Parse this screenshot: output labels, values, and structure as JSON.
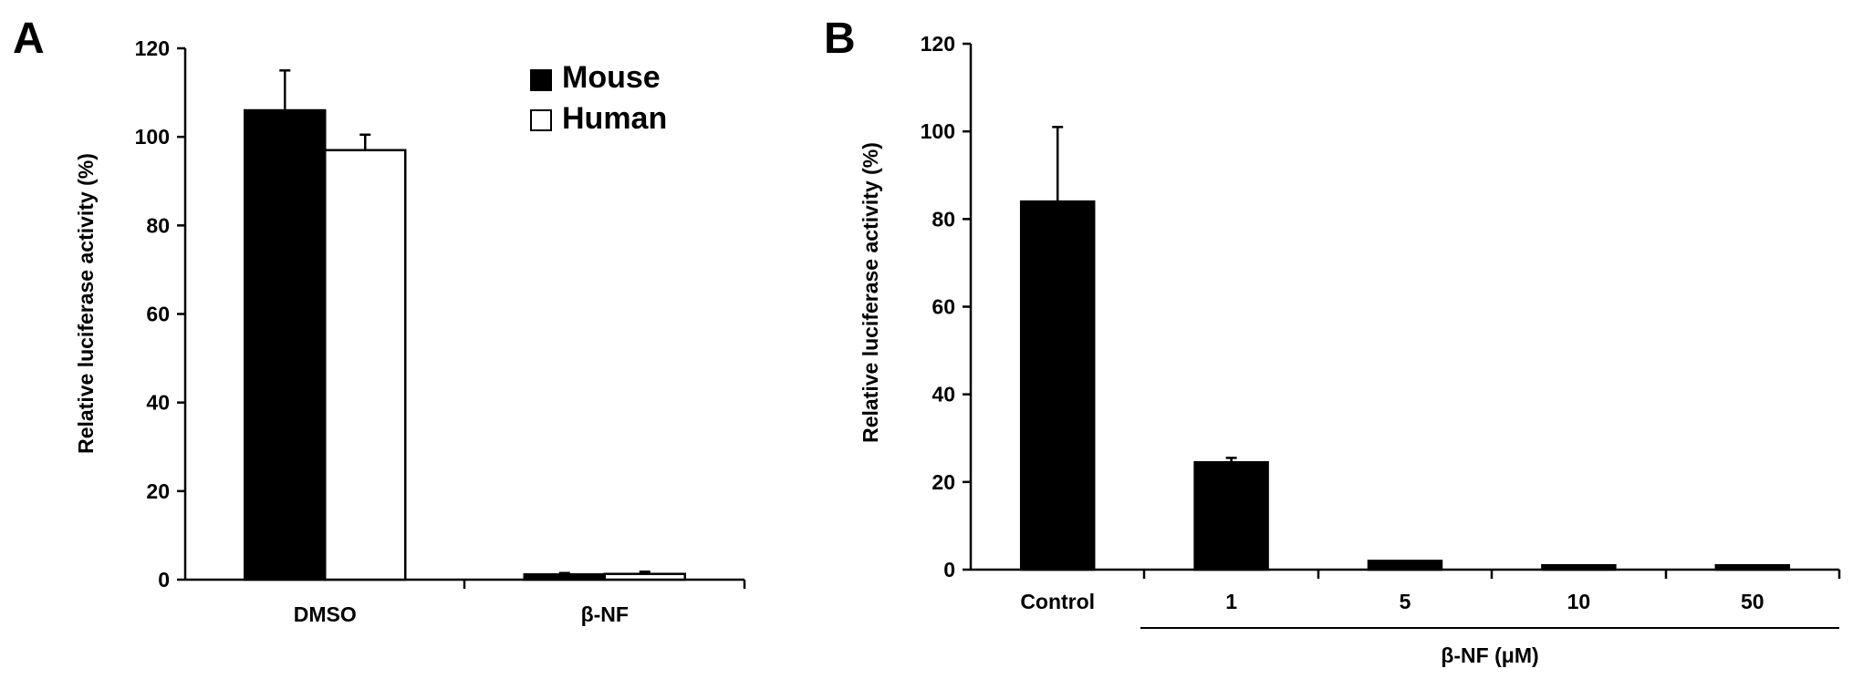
{
  "chart_data": [
    {
      "panel": "A",
      "type": "bar",
      "ylabel": "Relative luciferase activity (%)",
      "xlabel": "",
      "ylim": [
        0,
        120
      ],
      "yticks": [
        0,
        20,
        40,
        60,
        80,
        100,
        120
      ],
      "categories": [
        "DMSO",
        "β-NF"
      ],
      "legend_position": "top-right",
      "series": [
        {
          "name": "Mouse",
          "color": "#000000",
          "values": [
            106,
            1.2
          ],
          "errors": [
            9,
            0.3
          ]
        },
        {
          "name": "Human",
          "color": "#ffffff",
          "values": [
            97,
            1.3
          ],
          "errors": [
            3.5,
            0.5
          ]
        }
      ]
    },
    {
      "panel": "B",
      "type": "bar",
      "ylabel": "Relative luciferase activity (%)",
      "xlabel": "β-NF (μM)",
      "ylim": [
        0,
        120
      ],
      "yticks": [
        0,
        20,
        40,
        60,
        80,
        100,
        120
      ],
      "categories": [
        "Control",
        "1",
        "5",
        "10",
        "50"
      ],
      "series": [
        {
          "color": "#000000",
          "values": [
            84,
            24.5,
            2,
            1,
            1
          ],
          "errors": [
            17,
            1,
            0,
            0,
            0
          ]
        }
      ]
    }
  ]
}
